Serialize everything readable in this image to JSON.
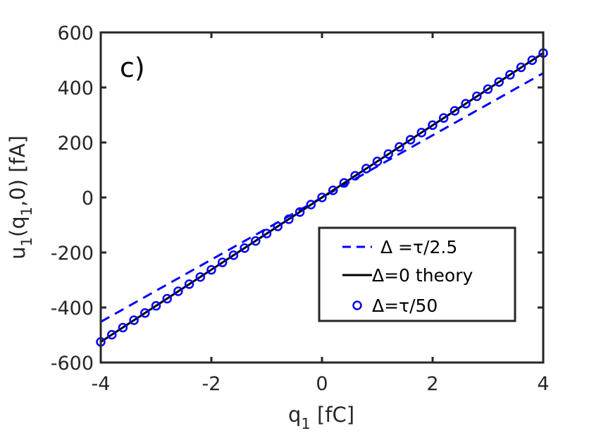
{
  "chart_data": {
    "type": "line",
    "panel_label": "c)",
    "xlabel": {
      "main": "q",
      "sub": "1",
      "unit": " [fC]"
    },
    "ylabel": {
      "p1": "u",
      "s1": "1",
      "p2": "(q",
      "s2": "1",
      "p3": ",0) [fA]"
    },
    "xlim": [
      -4,
      4
    ],
    "ylim": [
      -600,
      600
    ],
    "xticks": [
      -4,
      -2,
      0,
      2,
      4
    ],
    "xtick_labels": [
      "-4",
      "-2",
      "0",
      "2",
      "4"
    ],
    "yticks": [
      -600,
      -400,
      -200,
      0,
      200,
      400,
      600
    ],
    "ytick_labels": [
      "-600",
      "-400",
      "-200",
      "0",
      "200",
      "400",
      "600"
    ],
    "grid": false,
    "legend_position": "lower-right",
    "series": [
      {
        "name": "Δ =τ/2.5",
        "style": "dashed",
        "color": "#0000ff",
        "x": [
          -4,
          4
        ],
        "y": [
          -452,
          452
        ]
      },
      {
        "name": "Δ=0 theory",
        "style": "solid",
        "color": "#000000",
        "x": [
          -4,
          4
        ],
        "y": [
          -525,
          525
        ]
      },
      {
        "name": "Δ=τ/50",
        "style": "markers-circle",
        "color": "#0000ff",
        "x": [
          -4.0,
          -3.8,
          -3.6,
          -3.4,
          -3.2,
          -3.0,
          -2.8,
          -2.6,
          -2.4,
          -2.2,
          -2.0,
          -1.8,
          -1.6,
          -1.4,
          -1.2,
          -1.0,
          -0.8,
          -0.6,
          -0.4,
          -0.2,
          0.0,
          0.2,
          0.4,
          0.6,
          0.8,
          1.0,
          1.2,
          1.4,
          1.6,
          1.8,
          2.0,
          2.2,
          2.4,
          2.6,
          2.8,
          3.0,
          3.2,
          3.4,
          3.6,
          3.8,
          4.0
        ],
        "y": [
          -525,
          -499,
          -473,
          -446,
          -420,
          -394,
          -368,
          -341,
          -315,
          -289,
          -263,
          -236,
          -210,
          -184,
          -158,
          -131,
          -105,
          -79,
          -53,
          -26,
          0,
          26,
          53,
          79,
          105,
          131,
          158,
          184,
          210,
          236,
          263,
          289,
          315,
          341,
          368,
          394,
          420,
          446,
          473,
          499,
          525
        ]
      }
    ]
  }
}
